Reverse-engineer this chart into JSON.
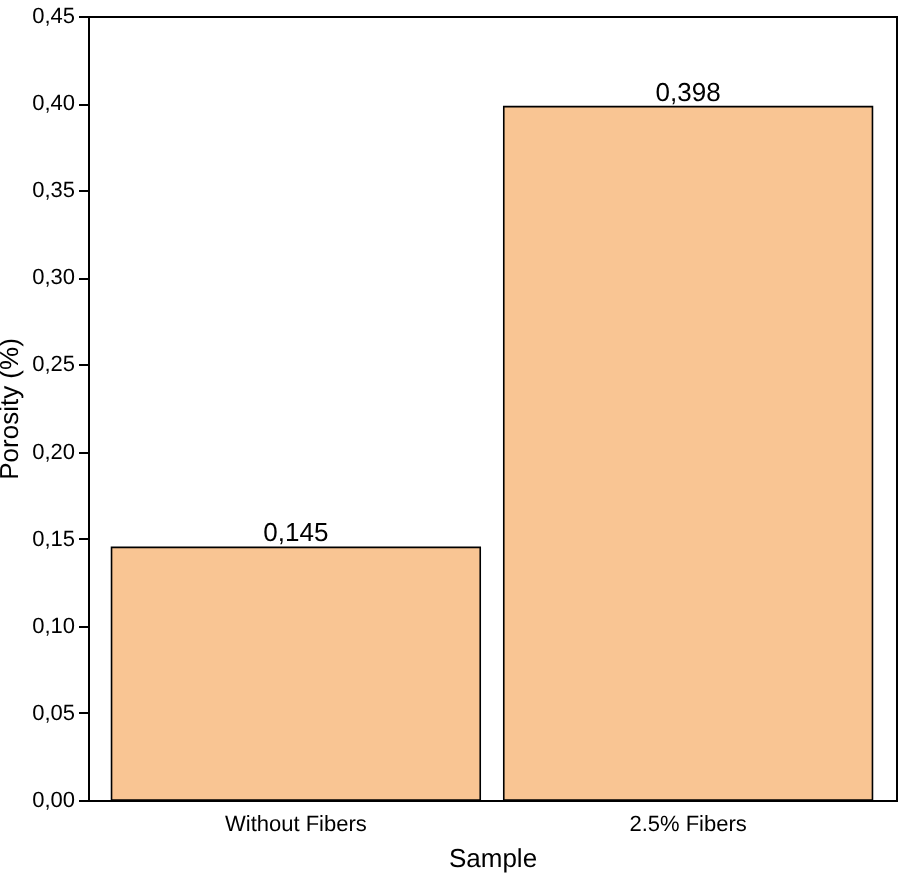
{
  "chart_data": {
    "type": "bar",
    "xlabel": "Sample",
    "ylabel": "Porosity (%)",
    "categories": [
      "Without Fibers",
      "2.5% Fibers"
    ],
    "values": [
      0.145,
      0.398
    ],
    "value_labels": [
      "0,145",
      "0,398"
    ],
    "color": "#f9c593",
    "ylim": [
      0,
      0.45
    ],
    "yticks": [
      {
        "value": 0,
        "label": "0,00"
      },
      {
        "value": 0.05,
        "label": "0,05"
      },
      {
        "value": 0.1,
        "label": "0,10"
      },
      {
        "value": 0.15,
        "label": "0,15"
      },
      {
        "value": 0.2,
        "label": "0,20"
      },
      {
        "value": 0.25,
        "label": "0,25"
      },
      {
        "value": 0.3,
        "label": "0,30"
      },
      {
        "value": 0.35,
        "label": "0,35"
      },
      {
        "value": 0.4,
        "label": "0,40"
      },
      {
        "value": 0.45,
        "label": "0,45"
      }
    ],
    "grid": false
  }
}
